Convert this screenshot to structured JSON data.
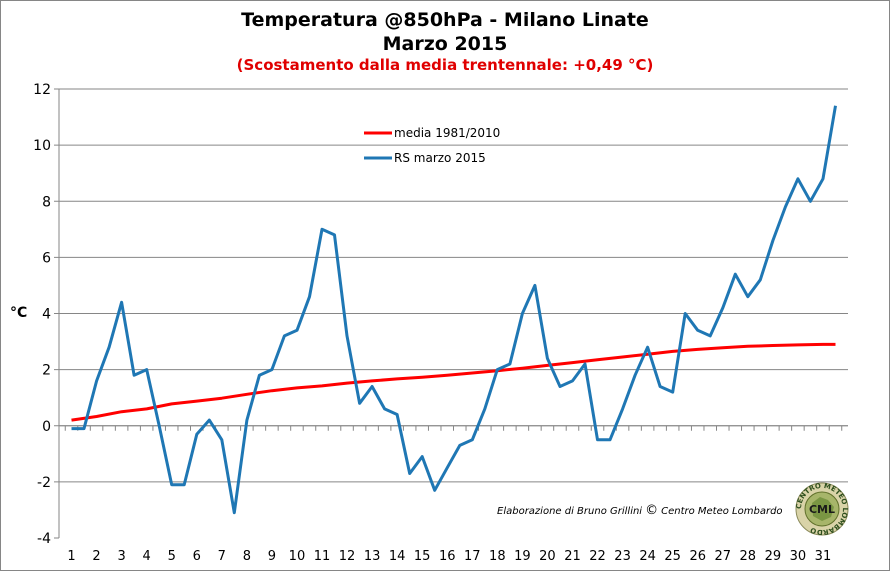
{
  "chart_data": {
    "type": "line",
    "title": "Temperatura @850hPa - Milano Linate",
    "subtitle": "Marzo 2015",
    "note": "(Scostamento dalla media trentennale: +0,49 °C)",
    "ylabel": "°C",
    "xlabel": "",
    "ylim": [
      -4,
      12
    ],
    "yticks": [
      "-4",
      "-2",
      "0",
      "2",
      "4",
      "6",
      "8",
      "10",
      "12"
    ],
    "xticks": [
      "1",
      "2",
      "3",
      "4",
      "5",
      "6",
      "7",
      "8",
      "9",
      "10",
      "11",
      "12",
      "13",
      "14",
      "15",
      "16",
      "17",
      "18",
      "19",
      "20",
      "21",
      "22",
      "23",
      "24",
      "25",
      "26",
      "27",
      "28",
      "29",
      "30",
      "31"
    ],
    "xlim": [
      0.5,
      32
    ],
    "grid": true,
    "legend_position": "top-center",
    "series": [
      {
        "name": "media 1981/2010",
        "color": "#ff0000",
        "x": [
          1,
          31.5
        ],
        "y_points": [
          [
            1,
            0.2
          ],
          [
            2,
            0.33
          ],
          [
            3,
            0.5
          ],
          [
            4,
            0.6
          ],
          [
            5,
            0.78
          ],
          [
            6,
            0.88
          ],
          [
            7,
            0.98
          ],
          [
            8,
            1.12
          ],
          [
            9,
            1.25
          ],
          [
            10,
            1.35
          ],
          [
            11,
            1.42
          ],
          [
            12,
            1.52
          ],
          [
            13,
            1.6
          ],
          [
            14,
            1.67
          ],
          [
            15,
            1.73
          ],
          [
            16,
            1.8
          ],
          [
            17,
            1.88
          ],
          [
            18,
            1.96
          ],
          [
            19,
            2.05
          ],
          [
            20,
            2.15
          ],
          [
            21,
            2.25
          ],
          [
            22,
            2.35
          ],
          [
            23,
            2.45
          ],
          [
            24,
            2.55
          ],
          [
            25,
            2.65
          ],
          [
            26,
            2.72
          ],
          [
            27,
            2.78
          ],
          [
            28,
            2.83
          ],
          [
            29,
            2.86
          ],
          [
            30,
            2.88
          ],
          [
            31,
            2.9
          ],
          [
            31.5,
            2.9
          ]
        ]
      },
      {
        "name": "RS marzo 2015",
        "color": "#1f77b4",
        "y_points": [
          [
            1,
            -0.1
          ],
          [
            1.5,
            -0.1
          ],
          [
            2,
            1.6
          ],
          [
            2.5,
            2.8
          ],
          [
            3,
            4.4
          ],
          [
            3.5,
            1.8
          ],
          [
            4,
            2.0
          ],
          [
            4.5,
            0.0
          ],
          [
            5,
            -2.1
          ],
          [
            5.5,
            -2.1
          ],
          [
            6,
            -0.3
          ],
          [
            6.5,
            0.2
          ],
          [
            7,
            -0.5
          ],
          [
            7.5,
            -3.1
          ],
          [
            8,
            0.2
          ],
          [
            8.5,
            1.8
          ],
          [
            9,
            2.0
          ],
          [
            9.5,
            3.2
          ],
          [
            10,
            3.4
          ],
          [
            10.5,
            4.6
          ],
          [
            11,
            7.0
          ],
          [
            11.5,
            6.8
          ],
          [
            12,
            3.2
          ],
          [
            12.5,
            0.8
          ],
          [
            13,
            1.4
          ],
          [
            13.5,
            0.6
          ],
          [
            14,
            0.4
          ],
          [
            14.5,
            -1.7
          ],
          [
            15,
            -1.1
          ],
          [
            15.5,
            -2.3
          ],
          [
            16,
            -1.5
          ],
          [
            16.5,
            -0.7
          ],
          [
            17,
            -0.5
          ],
          [
            17.5,
            0.6
          ],
          [
            18,
            2.0
          ],
          [
            18.5,
            2.2
          ],
          [
            19,
            4.0
          ],
          [
            19.5,
            5.0
          ],
          [
            20,
            2.4
          ],
          [
            20.5,
            1.4
          ],
          [
            21,
            1.6
          ],
          [
            21.5,
            2.2
          ],
          [
            22,
            -0.5
          ],
          [
            22.5,
            -0.5
          ],
          [
            23,
            0.6
          ],
          [
            23.5,
            1.8
          ],
          [
            24,
            2.8
          ],
          [
            24.5,
            1.4
          ],
          [
            25,
            1.2
          ],
          [
            25.5,
            4.0
          ],
          [
            26,
            3.4
          ],
          [
            26.5,
            3.2
          ],
          [
            27,
            4.2
          ],
          [
            27.5,
            5.4
          ],
          [
            28,
            4.6
          ],
          [
            28.5,
            5.2
          ],
          [
            29,
            6.6
          ],
          [
            29.5,
            7.8
          ],
          [
            30,
            8.8
          ],
          [
            30.5,
            8.0
          ],
          [
            31,
            8.8
          ],
          [
            31.5,
            11.4
          ]
        ]
      }
    ]
  },
  "credit": {
    "prefix": "Elaborazione di Bruno Grillini",
    "copyright": "©",
    "suffix": "Centro Meteo Lombardo"
  },
  "logo": {
    "ring_text": "CENTRO METEO LOMBARDO",
    "center_text": "CML"
  }
}
